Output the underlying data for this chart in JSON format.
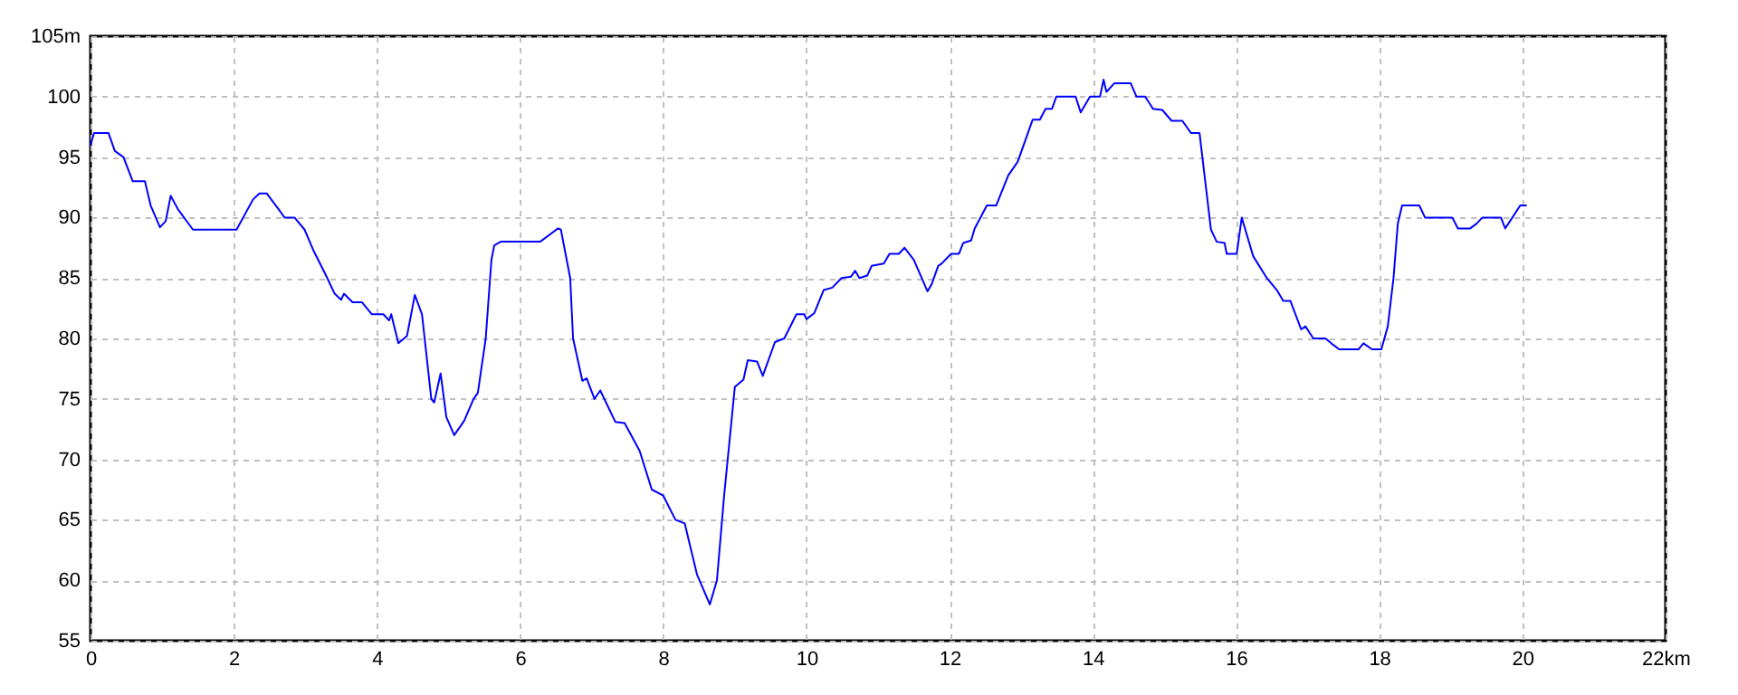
{
  "chart_data": {
    "type": "line",
    "x": [
      0,
      0.05,
      0.25,
      0.34,
      0.46,
      0.59,
      0.76,
      0.84,
      0.97,
      1.05,
      1.12,
      1.22,
      1.43,
      2.04,
      2.27,
      2.36,
      2.46,
      2.65,
      2.71,
      2.85,
      2.99,
      3.12,
      3.29,
      3.41,
      3.5,
      3.54,
      3.66,
      3.79,
      3.93,
      4.09,
      4.17,
      4.2,
      4.3,
      4.42,
      4.53,
      4.63,
      4.76,
      4.8,
      4.89,
      4.97,
      5.08,
      5.22,
      5.35,
      5.41,
      5.52,
      5.6,
      5.64,
      5.73,
      5.98,
      6.28,
      6.53,
      6.57,
      6.7,
      6.74,
      6.87,
      6.93,
      7.04,
      7.12,
      7.33,
      7.46,
      7.67,
      7.84,
      8.0,
      8.17,
      8.3,
      8.47,
      8.65,
      8.75,
      8.85,
      9.0,
      9.12,
      9.18,
      9.31,
      9.39,
      9.56,
      9.69,
      9.86,
      9.97,
      10.0,
      10.11,
      10.24,
      10.36,
      10.49,
      10.62,
      10.68,
      10.74,
      10.85,
      10.91,
      11.08,
      11.16,
      11.29,
      11.37,
      11.5,
      11.69,
      11.75,
      11.84,
      11.89,
      12.02,
      12.13,
      12.19,
      12.3,
      12.35,
      12.52,
      12.65,
      12.82,
      12.95,
      13.16,
      13.26,
      13.34,
      13.43,
      13.49,
      13.76,
      13.83,
      13.96,
      14.1,
      14.15,
      14.19,
      14.3,
      14.53,
      14.61,
      14.73,
      14.84,
      14.97,
      15.1,
      15.25,
      15.37,
      15.49,
      15.56,
      15.65,
      15.73,
      15.84,
      15.87,
      16.01,
      16.08,
      16.24,
      16.43,
      16.57,
      16.66,
      16.76,
      16.91,
      16.97,
      17.08,
      17.25,
      17.33,
      17.44,
      17.71,
      17.78,
      17.9,
      18.03,
      18.12,
      18.2,
      18.26,
      18.32,
      18.56,
      18.64,
      19.02,
      19.1,
      19.27,
      19.36,
      19.44,
      19.7,
      19.76,
      19.86,
      19.97,
      20.06
    ],
    "series": [
      {
        "color": "#0000ff",
        "values": [
          96,
          97,
          97,
          95.5,
          95,
          93,
          93,
          91,
          89.2,
          89.7,
          91.8,
          90.7,
          89,
          89,
          91.5,
          92,
          92,
          90.5,
          90,
          90,
          89,
          87.2,
          85.2,
          83.7,
          83.2,
          83.7,
          83,
          83,
          82,
          82,
          81.5,
          82,
          79.6,
          80.2,
          83.6,
          82,
          75,
          74.7,
          77.1,
          73.5,
          72,
          73.2,
          75,
          75.5,
          80,
          86.5,
          87.7,
          88,
          88,
          88,
          89.1,
          89,
          85,
          80,
          76.5,
          76.7,
          75,
          75.7,
          73.1,
          73,
          70.7,
          67.5,
          67,
          65,
          64.7,
          60.5,
          58,
          60,
          67,
          76,
          76.6,
          78.2,
          78.1,
          76.9,
          79.7,
          80,
          82,
          82,
          81.6,
          82.1,
          84,
          84.2,
          85,
          85.1,
          85.6,
          85,
          85.2,
          86,
          86.2,
          87,
          87,
          87.5,
          86.5,
          83.9,
          84.5,
          86,
          86.2,
          87,
          87,
          87.9,
          88.1,
          89.1,
          91,
          91,
          93.5,
          94.6,
          98.1,
          98.1,
          99,
          99,
          100,
          100,
          98.7,
          100,
          100,
          101.4,
          100.4,
          101.1,
          101.1,
          100,
          100,
          99,
          98.9,
          98,
          98,
          97,
          97,
          93.5,
          89,
          88,
          87.9,
          87,
          87,
          90,
          86.8,
          85,
          84,
          83.1,
          83.1,
          80.75,
          81,
          80,
          80,
          79.6,
          79.1,
          79.1,
          79.6,
          79.1,
          79.1,
          81,
          85,
          89.5,
          91,
          91,
          90,
          90,
          89.1,
          89.1,
          89.5,
          90,
          90,
          89.1,
          90,
          91,
          91
        ]
      }
    ],
    "xlim": [
      0,
      22
    ],
    "xticks": [
      0,
      2,
      4,
      6,
      8,
      10,
      12,
      14,
      16,
      18,
      20,
      {
        "value": 22,
        "label": "22km"
      }
    ],
    "ylim": [
      55,
      105
    ],
    "yticks": [
      55,
      60,
      65,
      70,
      75,
      80,
      85,
      90,
      95,
      100,
      {
        "value": 105,
        "label": "105m"
      }
    ],
    "grid": true,
    "line_style": "solid"
  }
}
